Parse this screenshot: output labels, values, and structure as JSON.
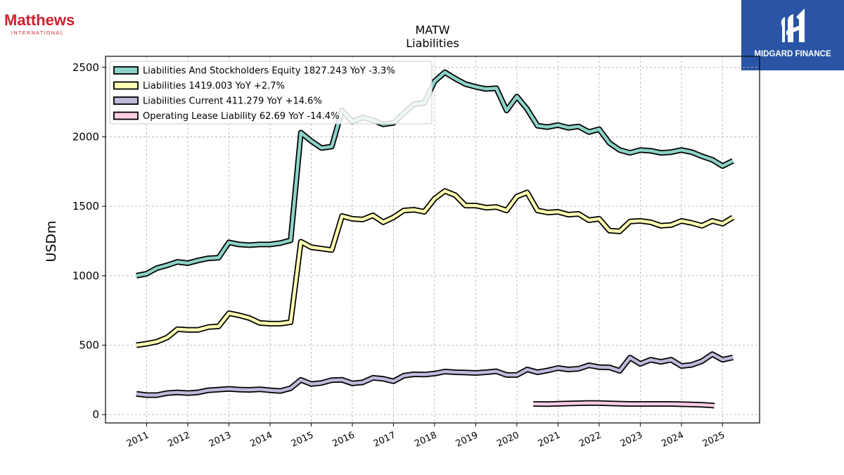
{
  "logos": {
    "left": {
      "name": "Matthews",
      "subtitle": "INTERNATIONAL",
      "color": "#d0202e"
    },
    "right": {
      "name": "MIDGARD FINANCE",
      "background": "#2a55a6"
    }
  },
  "chart_data": {
    "type": "line",
    "title": "MATW",
    "subtitle": "Liabilities",
    "xlabel": "",
    "ylabel": "USDm",
    "ylim": [
      -60,
      2580
    ],
    "xlim": [
      2010.0,
      2025.9
    ],
    "yticks": [
      0,
      500,
      1000,
      1500,
      2000,
      2500
    ],
    "xticks": [
      2011,
      2012,
      2013,
      2014,
      2015,
      2016,
      2017,
      2018,
      2019,
      2020,
      2021,
      2022,
      2023,
      2024,
      2025
    ],
    "xtick_labels": [
      "2011",
      "2012",
      "2013",
      "2014",
      "2015",
      "2016",
      "2017",
      "2018",
      "2019",
      "2020",
      "2021",
      "2022",
      "2023",
      "2024",
      "2025"
    ],
    "grid": true,
    "legend_position": "top-left",
    "series": [
      {
        "name": "Liabilities And Stockholders Equity",
        "legend_label": "Liabilities And Stockholders Equity  1827.243 YoY -3.3%",
        "color": "#8dd3c7",
        "points": [
          [
            2010.75,
            1000
          ],
          [
            2011.0,
            1015
          ],
          [
            2011.25,
            1055
          ],
          [
            2011.5,
            1075
          ],
          [
            2011.75,
            1100
          ],
          [
            2012.0,
            1090
          ],
          [
            2012.25,
            1110
          ],
          [
            2012.5,
            1125
          ],
          [
            2012.75,
            1130
          ],
          [
            2013.0,
            1240
          ],
          [
            2013.25,
            1225
          ],
          [
            2013.5,
            1220
          ],
          [
            2013.75,
            1225
          ],
          [
            2014.0,
            1225
          ],
          [
            2014.25,
            1235
          ],
          [
            2014.5,
            1255
          ],
          [
            2014.75,
            2030
          ],
          [
            2015.0,
            1970
          ],
          [
            2015.25,
            1920
          ],
          [
            2015.5,
            1930
          ],
          [
            2015.75,
            2190
          ],
          [
            2016.0,
            2110
          ],
          [
            2016.25,
            2140
          ],
          [
            2016.5,
            2120
          ],
          [
            2016.75,
            2090
          ],
          [
            2017.0,
            2100
          ],
          [
            2017.25,
            2170
          ],
          [
            2017.5,
            2235
          ],
          [
            2017.75,
            2245
          ],
          [
            2018.0,
            2400
          ],
          [
            2018.25,
            2465
          ],
          [
            2018.5,
            2420
          ],
          [
            2018.75,
            2380
          ],
          [
            2019.0,
            2360
          ],
          [
            2019.25,
            2345
          ],
          [
            2019.5,
            2350
          ],
          [
            2019.75,
            2190
          ],
          [
            2020.0,
            2290
          ],
          [
            2020.25,
            2200
          ],
          [
            2020.5,
            2080
          ],
          [
            2020.75,
            2070
          ],
          [
            2021.0,
            2085
          ],
          [
            2021.25,
            2065
          ],
          [
            2021.5,
            2075
          ],
          [
            2021.75,
            2035
          ],
          [
            2022.0,
            2055
          ],
          [
            2022.25,
            1955
          ],
          [
            2022.5,
            1905
          ],
          [
            2022.75,
            1885
          ],
          [
            2023.0,
            1905
          ],
          [
            2023.25,
            1900
          ],
          [
            2023.5,
            1885
          ],
          [
            2023.75,
            1890
          ],
          [
            2024.0,
            1905
          ],
          [
            2024.25,
            1890
          ],
          [
            2024.5,
            1860
          ],
          [
            2024.75,
            1835
          ],
          [
            2025.0,
            1790
          ],
          [
            2025.25,
            1827.243
          ]
        ]
      },
      {
        "name": "Liabilities",
        "legend_label": "Liabilities  1419.003 YoY +2.7%",
        "color": "#ffffb3",
        "points": [
          [
            2010.75,
            500
          ],
          [
            2011.0,
            510
          ],
          [
            2011.25,
            525
          ],
          [
            2011.5,
            555
          ],
          [
            2011.75,
            615
          ],
          [
            2012.0,
            610
          ],
          [
            2012.25,
            610
          ],
          [
            2012.5,
            630
          ],
          [
            2012.75,
            635
          ],
          [
            2013.0,
            730
          ],
          [
            2013.25,
            715
          ],
          [
            2013.5,
            695
          ],
          [
            2013.75,
            660
          ],
          [
            2014.0,
            655
          ],
          [
            2014.25,
            655
          ],
          [
            2014.5,
            665
          ],
          [
            2014.75,
            1245
          ],
          [
            2015.0,
            1205
          ],
          [
            2015.25,
            1195
          ],
          [
            2015.5,
            1185
          ],
          [
            2015.75,
            1430
          ],
          [
            2016.0,
            1410
          ],
          [
            2016.25,
            1405
          ],
          [
            2016.5,
            1435
          ],
          [
            2016.75,
            1385
          ],
          [
            2017.0,
            1420
          ],
          [
            2017.25,
            1470
          ],
          [
            2017.5,
            1475
          ],
          [
            2017.75,
            1460
          ],
          [
            2018.0,
            1555
          ],
          [
            2018.25,
            1610
          ],
          [
            2018.5,
            1580
          ],
          [
            2018.75,
            1505
          ],
          [
            2019.0,
            1505
          ],
          [
            2019.25,
            1490
          ],
          [
            2019.5,
            1495
          ],
          [
            2019.75,
            1470
          ],
          [
            2020.0,
            1570
          ],
          [
            2020.25,
            1600
          ],
          [
            2020.5,
            1470
          ],
          [
            2020.75,
            1455
          ],
          [
            2021.0,
            1460
          ],
          [
            2021.25,
            1440
          ],
          [
            2021.5,
            1445
          ],
          [
            2021.75,
            1400
          ],
          [
            2022.0,
            1410
          ],
          [
            2022.25,
            1325
          ],
          [
            2022.5,
            1320
          ],
          [
            2022.75,
            1390
          ],
          [
            2023.0,
            1395
          ],
          [
            2023.25,
            1385
          ],
          [
            2023.5,
            1360
          ],
          [
            2023.75,
            1365
          ],
          [
            2024.0,
            1395
          ],
          [
            2024.25,
            1380
          ],
          [
            2024.5,
            1360
          ],
          [
            2024.75,
            1395
          ],
          [
            2025.0,
            1375
          ],
          [
            2025.25,
            1419.003
          ]
        ]
      },
      {
        "name": "Liabilities Current",
        "legend_label": "Liabilities Current  411.279 YoY +14.6%",
        "color": "#bebada",
        "points": [
          [
            2010.75,
            150
          ],
          [
            2011.0,
            140
          ],
          [
            2011.25,
            140
          ],
          [
            2011.5,
            155
          ],
          [
            2011.75,
            160
          ],
          [
            2012.0,
            155
          ],
          [
            2012.25,
            160
          ],
          [
            2012.5,
            175
          ],
          [
            2012.75,
            180
          ],
          [
            2013.0,
            185
          ],
          [
            2013.25,
            180
          ],
          [
            2013.5,
            178
          ],
          [
            2013.75,
            182
          ],
          [
            2014.0,
            175
          ],
          [
            2014.25,
            170
          ],
          [
            2014.5,
            190
          ],
          [
            2014.75,
            250
          ],
          [
            2015.0,
            220
          ],
          [
            2015.25,
            228
          ],
          [
            2015.5,
            248
          ],
          [
            2015.75,
            250
          ],
          [
            2016.0,
            225
          ],
          [
            2016.25,
            232
          ],
          [
            2016.5,
            265
          ],
          [
            2016.75,
            258
          ],
          [
            2017.0,
            240
          ],
          [
            2017.25,
            280
          ],
          [
            2017.5,
            290
          ],
          [
            2017.75,
            288
          ],
          [
            2018.0,
            295
          ],
          [
            2018.25,
            310
          ],
          [
            2018.5,
            305
          ],
          [
            2018.75,
            303
          ],
          [
            2019.0,
            300
          ],
          [
            2019.25,
            305
          ],
          [
            2019.5,
            312
          ],
          [
            2019.75,
            285
          ],
          [
            2020.0,
            285
          ],
          [
            2020.25,
            325
          ],
          [
            2020.5,
            305
          ],
          [
            2020.75,
            318
          ],
          [
            2021.0,
            335
          ],
          [
            2021.25,
            325
          ],
          [
            2021.5,
            330
          ],
          [
            2021.75,
            355
          ],
          [
            2022.0,
            342
          ],
          [
            2022.25,
            340
          ],
          [
            2022.5,
            315
          ],
          [
            2022.75,
            410
          ],
          [
            2023.0,
            365
          ],
          [
            2023.25,
            395
          ],
          [
            2023.5,
            380
          ],
          [
            2023.75,
            395
          ],
          [
            2024.0,
            350
          ],
          [
            2024.25,
            358
          ],
          [
            2024.5,
            385
          ],
          [
            2024.75,
            435
          ],
          [
            2025.0,
            395
          ],
          [
            2025.25,
            411.279
          ]
        ]
      },
      {
        "name": "Operating Lease Liability",
        "legend_label": "Operating Lease Liability  62.69 YoY -14.4%",
        "color": "#fccde5",
        "points": [
          [
            2020.4,
            77
          ],
          [
            2020.75,
            76
          ],
          [
            2021.0,
            78
          ],
          [
            2021.25,
            80
          ],
          [
            2021.5,
            82
          ],
          [
            2021.75,
            84
          ],
          [
            2022.0,
            83
          ],
          [
            2022.25,
            81
          ],
          [
            2022.5,
            79
          ],
          [
            2022.75,
            77
          ],
          [
            2023.0,
            77
          ],
          [
            2023.25,
            77
          ],
          [
            2023.5,
            77
          ],
          [
            2023.75,
            77
          ],
          [
            2024.0,
            75
          ],
          [
            2024.25,
            73
          ],
          [
            2024.5,
            70
          ],
          [
            2024.75,
            66
          ],
          [
            2024.8,
            64
          ]
        ]
      }
    ]
  }
}
